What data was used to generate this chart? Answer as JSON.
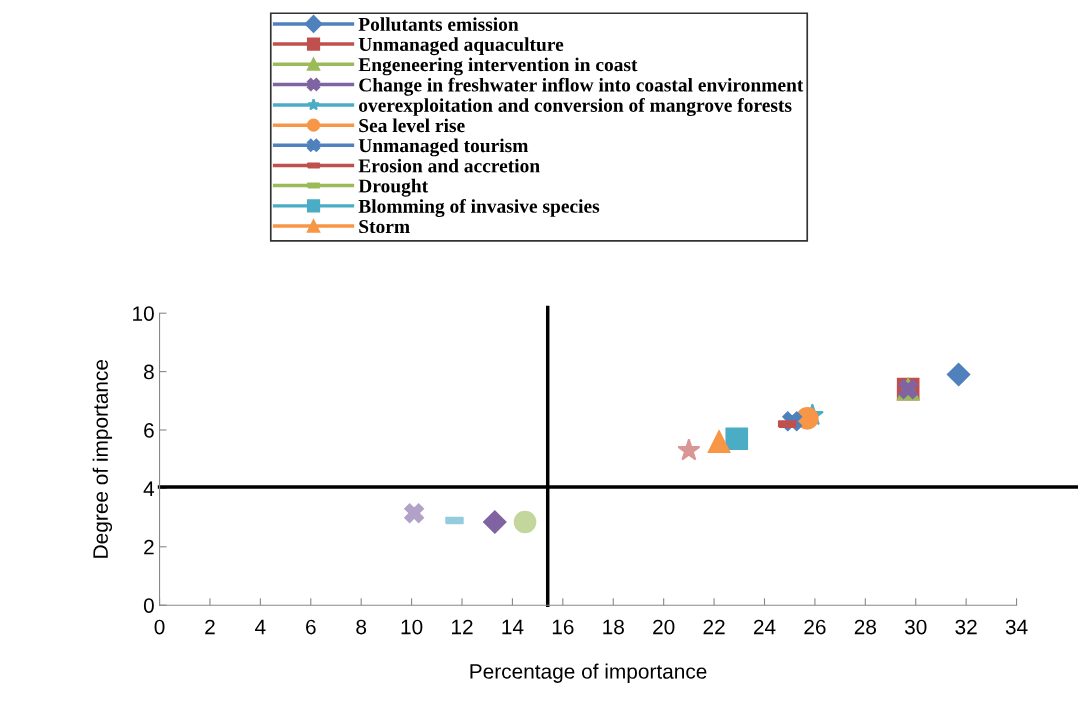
{
  "chart_data": {
    "type": "scatter",
    "xlabel": "Percentage of importance",
    "ylabel": "Degree of importance",
    "xlim": [
      0,
      34
    ],
    "xticks": [
      0,
      2,
      4,
      6,
      8,
      10,
      12,
      14,
      16,
      18,
      20,
      22,
      24,
      26,
      28,
      30,
      32,
      34
    ],
    "ylim": [
      0,
      10
    ],
    "yticks": [
      0,
      2,
      4,
      6,
      8,
      10
    ],
    "grid": false,
    "legend": "top",
    "ref_lines": [
      {
        "axis": "x",
        "value": 15.4,
        "color": "#000000"
      },
      {
        "axis": "y",
        "value": 4.05,
        "color": "#000000"
      }
    ],
    "series": [
      {
        "name": "Pollutants emission",
        "color": "#4f81bd",
        "marker": "diamond",
        "x": [
          31.7
        ],
        "values": [
          7.9
        ]
      },
      {
        "name": "Unmanaged aquaculture",
        "color": "#c0504d",
        "marker": "square",
        "x": [
          29.7
        ],
        "values": [
          7.4
        ]
      },
      {
        "name": "Engeneering intervention in coast",
        "color": "#9bbb59",
        "marker": "triangle",
        "x": [
          29.7
        ],
        "values": [
          7.4
        ]
      },
      {
        "name": "Change in freshwater inflow into coastal environment",
        "color": "#8064a2",
        "marker": "cross",
        "x": [
          29.7
        ],
        "values": [
          7.4
        ]
      },
      {
        "name": "overexploitation and conversion of mangrove forests",
        "color": "#4bacc6",
        "marker": "star",
        "x": [
          25.9
        ],
        "values": [
          6.5
        ]
      },
      {
        "name": "Sea level rise",
        "color": "#f79646",
        "marker": "circle",
        "x": [
          25.7
        ],
        "values": [
          6.4
        ]
      },
      {
        "name": "Unmanaged tourism",
        "color": "#4f81bd",
        "marker": "cross",
        "x": [
          25.1
        ],
        "values": [
          6.3
        ]
      },
      {
        "name": "Erosion and accretion",
        "color": "#c0504d",
        "x": [
          24.9
        ],
        "values": [
          6.2
        ]
      },
      {
        "name": "Drought",
        "color": "#9bbb59",
        "x": [
          null
        ],
        "values": [
          null
        ]
      },
      {
        "name": "Blomming of invasive species",
        "color": "#4bacc6",
        "marker": "square",
        "x": [
          22.9
        ],
        "values": [
          5.7
        ]
      },
      {
        "name": "Storm",
        "color": "#f79646",
        "marker": "triangle",
        "x": [
          22.2
        ],
        "values": [
          5.6
        ]
      },
      {
        "color": "#d99694",
        "marker": "star",
        "x": [
          21.0
        ],
        "values": [
          5.3
        ]
      },
      {
        "color": "#b3a2c7",
        "marker": "cross",
        "x": [
          10.1
        ],
        "values": [
          3.15
        ]
      },
      {
        "color": "#93cddd",
        "x": [
          11.7
        ],
        "values": [
          2.9
        ]
      },
      {
        "color": "#8064a2",
        "marker": "diamond",
        "x": [
          13.3
        ],
        "values": [
          2.85
        ]
      },
      {
        "color": "#c3d69b",
        "marker": "circle",
        "x": [
          14.5
        ],
        "values": [
          2.85
        ]
      }
    ]
  }
}
